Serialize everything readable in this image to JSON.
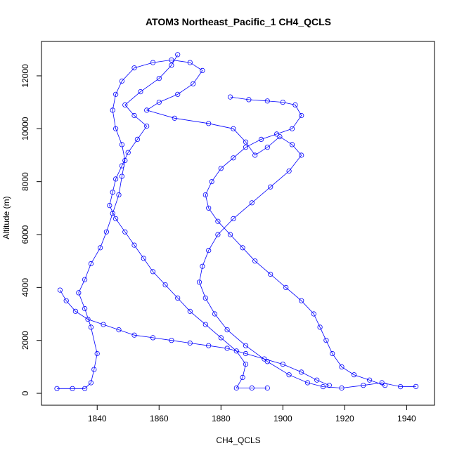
{
  "chart_data": {
    "type": "scatter",
    "title": "ATOM3 Northeast_Pacific_1 CH4_QCLS",
    "xlabel": "CH4_QCLS",
    "ylabel": "Altitude (m)",
    "xlim": [
      1822,
      1949
    ],
    "ylim": [
      -450,
      13300
    ],
    "x_ticks": [
      "1840",
      "1860",
      "1880",
      "1900",
      "1920",
      "1940"
    ],
    "y_ticks": [
      "0",
      "2000",
      "4000",
      "6000",
      "8000",
      "10000",
      "12000"
    ],
    "marker": "open-circle",
    "connect_points": true,
    "color": "#0000ff",
    "grid": false,
    "legend": "none",
    "series": [
      {
        "values": [
          [
            1827,
            180
          ],
          [
            1832,
            180
          ],
          [
            1836,
            180
          ],
          [
            1838,
            400
          ],
          [
            1839,
            900
          ],
          [
            1840,
            1500
          ],
          [
            1838,
            2500
          ],
          [
            1836,
            3200
          ],
          [
            1834,
            3800
          ],
          [
            1836,
            4300
          ],
          [
            1838,
            4900
          ],
          [
            1841,
            5500
          ],
          [
            1843,
            6100
          ],
          [
            1845,
            6800
          ],
          [
            1847,
            7500
          ],
          [
            1848,
            8200
          ],
          [
            1849,
            8800
          ],
          [
            1848,
            9400
          ],
          [
            1846,
            10000
          ],
          [
            1845,
            10700
          ],
          [
            1846,
            11300
          ],
          [
            1848,
            11800
          ],
          [
            1852,
            12300
          ],
          [
            1858,
            12500
          ],
          [
            1864,
            12600
          ],
          [
            1870,
            12500
          ],
          [
            1874,
            12200
          ],
          [
            1871,
            11700
          ],
          [
            1866,
            11300
          ],
          [
            1860,
            11000
          ],
          [
            1856,
            10700
          ],
          [
            1865,
            10400
          ],
          [
            1876,
            10200
          ],
          [
            1884,
            10000
          ],
          [
            1888,
            9500
          ],
          [
            1891,
            9000
          ],
          [
            1895,
            9300
          ],
          [
            1899,
            9700
          ],
          [
            1903,
            9400
          ],
          [
            1906,
            9000
          ],
          [
            1902,
            8400
          ],
          [
            1896,
            7800
          ],
          [
            1890,
            7200
          ],
          [
            1884,
            6600
          ],
          [
            1879,
            6000
          ],
          [
            1876,
            5400
          ],
          [
            1874,
            4800
          ],
          [
            1873,
            4200
          ],
          [
            1875,
            3600
          ],
          [
            1878,
            3000
          ],
          [
            1882,
            2400
          ],
          [
            1888,
            1800
          ],
          [
            1895,
            1200
          ],
          [
            1902,
            700
          ],
          [
            1908,
            400
          ],
          [
            1913,
            250
          ],
          [
            1919,
            200
          ],
          [
            1926,
            300
          ],
          [
            1932,
            400
          ],
          [
            1938,
            250
          ],
          [
            1943,
            260
          ]
        ]
      },
      {
        "values": [
          [
            1866,
            12800
          ],
          [
            1864,
            12400
          ],
          [
            1860,
            11900
          ],
          [
            1854,
            11400
          ],
          [
            1849,
            10900
          ],
          [
            1852,
            10500
          ],
          [
            1856,
            10100
          ],
          [
            1853,
            9600
          ],
          [
            1850,
            9100
          ],
          [
            1848,
            8600
          ],
          [
            1846,
            8100
          ],
          [
            1845,
            7600
          ],
          [
            1844,
            7100
          ],
          [
            1846,
            6600
          ],
          [
            1849,
            6100
          ],
          [
            1852,
            5600
          ],
          [
            1855,
            5100
          ],
          [
            1858,
            4600
          ],
          [
            1862,
            4100
          ],
          [
            1866,
            3600
          ],
          [
            1870,
            3100
          ],
          [
            1875,
            2600
          ],
          [
            1880,
            2100
          ],
          [
            1885,
            1600
          ],
          [
            1888,
            1100
          ],
          [
            1887,
            600
          ],
          [
            1885,
            200
          ],
          [
            1890,
            200
          ],
          [
            1895,
            200
          ]
        ]
      },
      {
        "values": [
          [
            1828,
            3900
          ],
          [
            1830,
            3500
          ],
          [
            1833,
            3100
          ],
          [
            1837,
            2800
          ],
          [
            1842,
            2600
          ],
          [
            1847,
            2400
          ],
          [
            1852,
            2200
          ],
          [
            1858,
            2100
          ],
          [
            1864,
            2000
          ],
          [
            1870,
            1900
          ],
          [
            1876,
            1800
          ],
          [
            1882,
            1700
          ],
          [
            1888,
            1500
          ],
          [
            1894,
            1300
          ],
          [
            1900,
            1100
          ],
          [
            1906,
            800
          ],
          [
            1911,
            500
          ],
          [
            1915,
            300
          ]
        ]
      },
      {
        "values": [
          [
            1883,
            11200
          ],
          [
            1889,
            11100
          ],
          [
            1895,
            11050
          ],
          [
            1900,
            11000
          ],
          [
            1904,
            10900
          ],
          [
            1906,
            10500
          ],
          [
            1903,
            10000
          ],
          [
            1898,
            9800
          ],
          [
            1893,
            9600
          ],
          [
            1888,
            9300
          ],
          [
            1884,
            8900
          ],
          [
            1880,
            8500
          ],
          [
            1877,
            8000
          ],
          [
            1875,
            7500
          ],
          [
            1876,
            7000
          ],
          [
            1879,
            6500
          ],
          [
            1883,
            6000
          ],
          [
            1887,
            5500
          ],
          [
            1891,
            5000
          ],
          [
            1896,
            4500
          ],
          [
            1901,
            4000
          ],
          [
            1906,
            3500
          ],
          [
            1910,
            3000
          ],
          [
            1912,
            2500
          ],
          [
            1914,
            2000
          ],
          [
            1916,
            1500
          ],
          [
            1919,
            1000
          ],
          [
            1923,
            700
          ],
          [
            1928,
            500
          ],
          [
            1933,
            300
          ]
        ]
      }
    ]
  }
}
